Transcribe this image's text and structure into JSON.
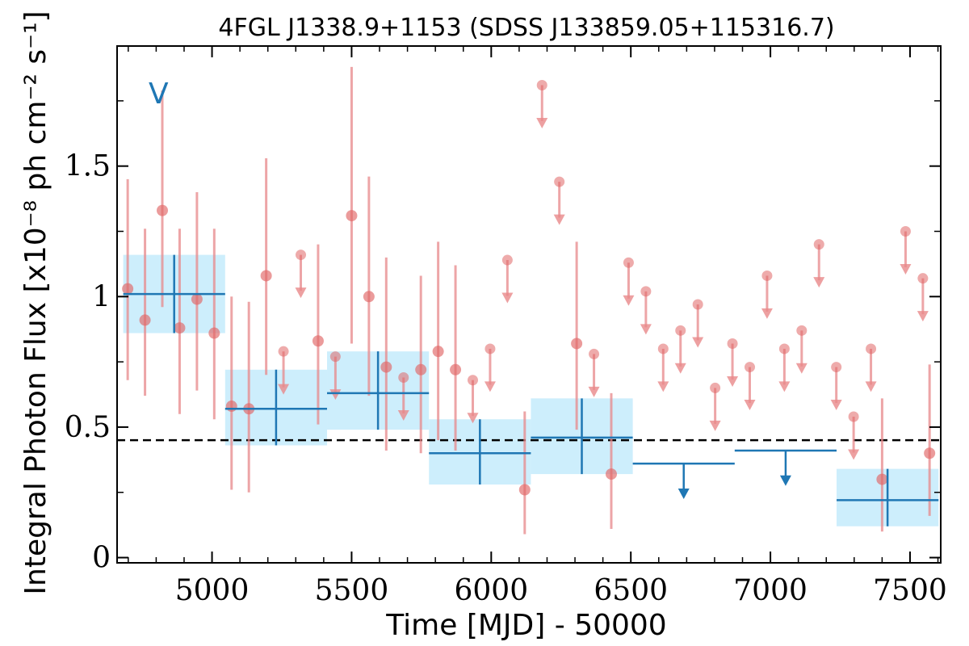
{
  "chart_data": {
    "type": "scatter",
    "title": "4FGL J1338.9+1153 (SDSS J133859.05+115316.7)",
    "xlabel": "Time [MJD] - 50000",
    "ylabel": "Integral Photon Flux [x10⁻⁸ ph cm⁻² s⁻¹]",
    "xlim": [
      4660,
      7610
    ],
    "ylim": [
      -0.02,
      1.96
    ],
    "x_ticks": [
      5000,
      5500,
      6000,
      6500,
      7000,
      7500
    ],
    "x_tick_labels": [
      "5000",
      "5500",
      "6000",
      "6500",
      "7000",
      "7500"
    ],
    "y_ticks": [
      0,
      0.5,
      1,
      1.5
    ],
    "y_tick_labels": [
      "0",
      "0.5",
      "1",
      "1.5"
    ],
    "corner_label": "V",
    "reference_line": {
      "y": 0.45,
      "style": "dashed",
      "color": "#000000"
    },
    "colors": {
      "monthly": "#e8888a",
      "monthly_marker": "#e06666",
      "yearly": "#1f77b4",
      "yearly_band": "#cdeefc"
    },
    "series": [
      {
        "kind": "monthly_detections",
        "points": [
          {
            "x": 4698,
            "y": 1.03,
            "ylo": 0.68,
            "yhi": 1.45
          },
          {
            "x": 4760,
            "y": 0.91,
            "ylo": 0.62,
            "yhi": 1.26
          },
          {
            "x": 4822,
            "y": 1.33,
            "ylo": 0.96,
            "yhi": 1.79
          },
          {
            "x": 4884,
            "y": 0.88,
            "ylo": 0.55,
            "yhi": 1.26
          },
          {
            "x": 4946,
            "y": 0.99,
            "ylo": 0.64,
            "yhi": 1.4
          },
          {
            "x": 5008,
            "y": 0.86,
            "ylo": 0.53,
            "yhi": 1.26
          },
          {
            "x": 5070,
            "y": 0.58,
            "ylo": 0.26,
            "yhi": 1.0
          },
          {
            "x": 5132,
            "y": 0.57,
            "ylo": 0.25,
            "yhi": 0.98
          },
          {
            "x": 5194,
            "y": 1.08,
            "ylo": 0.7,
            "yhi": 1.53
          },
          {
            "x": 5380,
            "y": 0.83,
            "ylo": 0.51,
            "yhi": 1.2
          },
          {
            "x": 5500,
            "y": 1.31,
            "ylo": 0.82,
            "yhi": 1.88
          },
          {
            "x": 5562,
            "y": 1.0,
            "ylo": 0.62,
            "yhi": 1.46
          },
          {
            "x": 5624,
            "y": 0.73,
            "ylo": 0.41,
            "yhi": 1.15
          },
          {
            "x": 5748,
            "y": 0.72,
            "ylo": 0.4,
            "yhi": 1.08
          },
          {
            "x": 5810,
            "y": 0.79,
            "ylo": 0.45,
            "yhi": 1.21
          },
          {
            "x": 5872,
            "y": 0.72,
            "ylo": 0.41,
            "yhi": 1.12
          },
          {
            "x": 6120,
            "y": 0.26,
            "ylo": 0.09,
            "yhi": 0.56
          },
          {
            "x": 6306,
            "y": 0.82,
            "ylo": 0.49,
            "yhi": 1.21
          },
          {
            "x": 6430,
            "y": 0.32,
            "ylo": 0.11,
            "yhi": 0.63
          },
          {
            "x": 7400,
            "y": 0.3,
            "ylo": 0.1,
            "yhi": 0.61
          },
          {
            "x": 7570,
            "y": 0.4,
            "ylo": 0.16,
            "yhi": 0.74
          }
        ]
      },
      {
        "kind": "monthly_upper_limits",
        "points": [
          {
            "x": 5256,
            "y": 0.79
          },
          {
            "x": 5318,
            "y": 1.16
          },
          {
            "x": 5442,
            "y": 0.77
          },
          {
            "x": 5686,
            "y": 0.69
          },
          {
            "x": 5934,
            "y": 0.68
          },
          {
            "x": 5996,
            "y": 0.8
          },
          {
            "x": 6058,
            "y": 1.14
          },
          {
            "x": 6182,
            "y": 1.81
          },
          {
            "x": 6244,
            "y": 1.44
          },
          {
            "x": 6368,
            "y": 0.78
          },
          {
            "x": 6492,
            "y": 1.13
          },
          {
            "x": 6554,
            "y": 1.02
          },
          {
            "x": 6616,
            "y": 0.8
          },
          {
            "x": 6678,
            "y": 0.87
          },
          {
            "x": 6740,
            "y": 0.97
          },
          {
            "x": 6802,
            "y": 0.65
          },
          {
            "x": 6864,
            "y": 0.82
          },
          {
            "x": 6926,
            "y": 0.73
          },
          {
            "x": 6988,
            "y": 1.08
          },
          {
            "x": 7050,
            "y": 0.8
          },
          {
            "x": 7112,
            "y": 0.87
          },
          {
            "x": 7174,
            "y": 1.2
          },
          {
            "x": 7236,
            "y": 0.73
          },
          {
            "x": 7298,
            "y": 0.54
          },
          {
            "x": 7360,
            "y": 0.8
          },
          {
            "x": 7484,
            "y": 1.25
          },
          {
            "x": 7546,
            "y": 1.07
          }
        ]
      },
      {
        "kind": "yearly_detections",
        "bins": [
          {
            "x0": 4682,
            "x1": 5047,
            "y": 1.01,
            "ylo": 0.86,
            "yhi": 1.16
          },
          {
            "x0": 5047,
            "x1": 5412,
            "y": 0.57,
            "ylo": 0.43,
            "yhi": 0.72
          },
          {
            "x0": 5412,
            "x1": 5777,
            "y": 0.63,
            "ylo": 0.49,
            "yhi": 0.79
          },
          {
            "x0": 5777,
            "x1": 6142,
            "y": 0.4,
            "ylo": 0.28,
            "yhi": 0.53
          },
          {
            "x0": 6142,
            "x1": 6507,
            "y": 0.46,
            "ylo": 0.32,
            "yhi": 0.61
          },
          {
            "x0": 7237,
            "x1": 7602,
            "y": 0.22,
            "ylo": 0.12,
            "yhi": 0.34
          }
        ]
      },
      {
        "kind": "yearly_upper_limits",
        "bins": [
          {
            "x0": 6507,
            "x1": 6872,
            "y": 0.36
          },
          {
            "x0": 6872,
            "x1": 7237,
            "y": 0.41
          }
        ]
      }
    ]
  }
}
